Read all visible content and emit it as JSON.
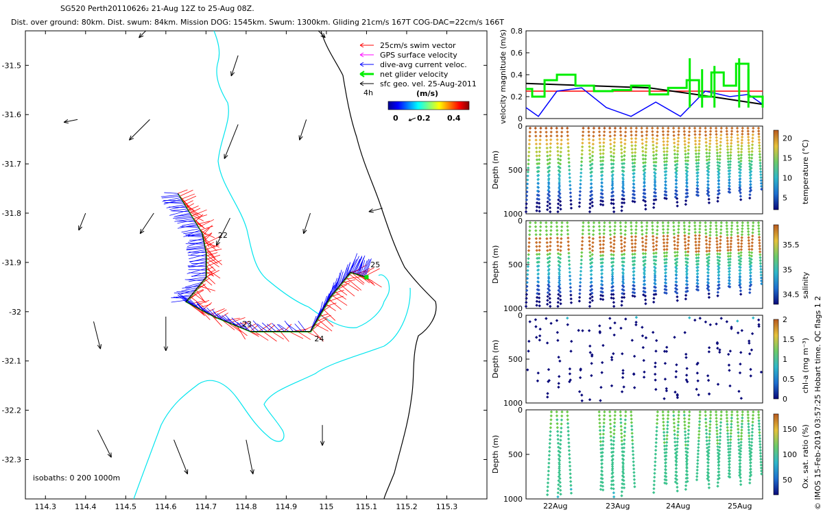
{
  "header": {
    "title": "SG520 Perth20110626₂ 21-Aug 12Z to 25-Aug 08Z.",
    "subtitle": "Dist. over ground: 80km. Dist. swum: 84km. Mission DOG: 1545km. Swum: 1300km. Gliding 21cm/s 167T COG-DAC=22cm/s 166T"
  },
  "footer": {
    "stamp": "© IMOS 15-Feb-2019 03:57:25 Hobart time. QC flags 1  2"
  },
  "colors": {
    "swim": "#ff0000",
    "gps": "#ff00ff",
    "dac": "#0000ff",
    "net": "#00ee00",
    "sfc": "#000000",
    "isobath_200": "#00e5ee",
    "isobath_1000": "#000000"
  },
  "chart_data": [
    {
      "type": "scatter",
      "name": "track_map",
      "xlim": [
        114.25,
        115.4
      ],
      "ylim": [
        -32.38,
        -31.43
      ],
      "xticks": [
        "114.3",
        "114.4",
        "114.5",
        "114.6",
        "114.7",
        "114.8",
        "114.9",
        "115",
        "115.1",
        "115.2",
        "115.3"
      ],
      "yticks": [
        "-31.5",
        "-31.6",
        "-31.7",
        "-31.8",
        "-31.9",
        "-32",
        "-32.1",
        "-32.2",
        "-32.3"
      ],
      "legend": [
        "25cm/s swim vector",
        "GPS surface velocity",
        "dive-avg current veloc.",
        "net glider velocity",
        "sfc geo. vel. 25-Aug-2011"
      ],
      "legend_placement": "top-right",
      "legend_note": "4h",
      "colorbar": {
        "label": "(m/s)",
        "ticks": [
          "0",
          "0.2",
          "0.4"
        ],
        "range": [
          0,
          0.5
        ]
      },
      "isobaths_label": "isobaths: 0   200   1000m",
      "track": [
        {
          "lon": 114.63,
          "lat": -31.76
        },
        {
          "lon": 114.66,
          "lat": -31.8
        },
        {
          "lon": 114.69,
          "lat": -31.84
        },
        {
          "lon": 114.7,
          "lat": -31.88
        },
        {
          "lon": 114.7,
          "lat": -31.93
        },
        {
          "lon": 114.65,
          "lat": -31.98
        },
        {
          "lon": 114.72,
          "lat": -32.01
        },
        {
          "lon": 114.81,
          "lat": -32.04
        },
        {
          "lon": 114.96,
          "lat": -32.04
        },
        {
          "lon": 115.01,
          "lat": -31.97
        },
        {
          "lon": 115.06,
          "lat": -31.92
        },
        {
          "lon": 115.1,
          "lat": -31.93
        }
      ],
      "track_labels": [
        {
          "text": "22",
          "lon": 114.73,
          "lat": -31.85
        },
        {
          "text": "23",
          "lon": 114.79,
          "lat": -32.03
        },
        {
          "text": "24",
          "lon": 114.97,
          "lat": -32.06
        },
        {
          "text": "25",
          "lon": 115.11,
          "lat": -31.91
        }
      ],
      "sfc_vectors": [
        {
          "lon": 114.38,
          "lat": -31.61,
          "u": -0.02,
          "v": -0.004
        },
        {
          "lon": 114.56,
          "lat": -31.61,
          "u": -0.03,
          "v": -0.03
        },
        {
          "lon": 114.78,
          "lat": -31.62,
          "u": -0.02,
          "v": -0.05
        },
        {
          "lon": 114.95,
          "lat": -31.61,
          "u": -0.01,
          "v": -0.03
        },
        {
          "lon": 114.4,
          "lat": -31.8,
          "u": -0.01,
          "v": -0.025
        },
        {
          "lon": 114.57,
          "lat": -31.8,
          "u": -0.02,
          "v": -0.03
        },
        {
          "lon": 114.76,
          "lat": -31.81,
          "u": -0.02,
          "v": -0.04
        },
        {
          "lon": 114.96,
          "lat": -31.8,
          "u": -0.01,
          "v": -0.03
        },
        {
          "lon": 115.14,
          "lat": -31.79,
          "u": -0.02,
          "v": -0.005
        },
        {
          "lon": 114.42,
          "lat": -32.02,
          "u": 0.01,
          "v": -0.04
        },
        {
          "lon": 114.6,
          "lat": -32.01,
          "u": 0.0,
          "v": -0.05
        },
        {
          "lon": 114.43,
          "lat": -32.24,
          "u": 0.02,
          "v": -0.04
        },
        {
          "lon": 114.62,
          "lat": -32.26,
          "u": 0.02,
          "v": -0.05
        },
        {
          "lon": 114.8,
          "lat": -32.26,
          "u": 0.01,
          "v": -0.05
        },
        {
          "lon": 114.99,
          "lat": -32.23,
          "u": 0.0,
          "v": -0.03
        },
        {
          "lon": 114.78,
          "lat": -31.48,
          "u": -0.01,
          "v": -0.03
        },
        {
          "lon": 114.55,
          "lat": -31.43,
          "u": -0.01,
          "v": -0.01
        },
        {
          "lon": 114.98,
          "lat": -31.43,
          "u": 0.01,
          "v": -0.01
        }
      ]
    },
    {
      "type": "line",
      "name": "velocity",
      "ylabel": "velocity magnitude (m/s)",
      "ylim": [
        0,
        0.8
      ],
      "yticks": [
        "0",
        "0.2",
        "0.4",
        "0.6",
        "0.8"
      ],
      "x_range_days": [
        21.5,
        25.33
      ],
      "series": [
        {
          "name": "swim",
          "color": "#ff0000",
          "x": [
            21.5,
            25.33
          ],
          "values": [
            0.25,
            0.25
          ]
        },
        {
          "name": "gps",
          "color": "#000000",
          "x": [
            21.5,
            22.5,
            23.5,
            24.5,
            25.33
          ],
          "values": [
            0.32,
            0.3,
            0.28,
            0.2,
            0.13
          ]
        },
        {
          "name": "dac",
          "color": "#0000ff",
          "x": [
            21.5,
            21.7,
            22.0,
            22.4,
            22.8,
            23.2,
            23.6,
            24.0,
            24.4,
            24.8,
            25.1,
            25.33
          ],
          "values": [
            0.1,
            0.02,
            0.25,
            0.28,
            0.1,
            0.02,
            0.15,
            0.02,
            0.25,
            0.2,
            0.22,
            0.13
          ]
        },
        {
          "name": "net",
          "color": "#00ee00",
          "x": [
            21.5,
            21.6,
            21.8,
            22.0,
            22.3,
            22.6,
            22.9,
            23.2,
            23.5,
            23.8,
            24.1,
            24.3,
            24.5,
            24.7,
            24.9,
            25.1,
            25.33
          ],
          "values": [
            0.27,
            0.2,
            0.35,
            0.4,
            0.3,
            0.25,
            0.26,
            0.3,
            0.22,
            0.28,
            0.35,
            0.2,
            0.42,
            0.3,
            0.5,
            0.2,
            0.1
          ]
        }
      ]
    },
    {
      "type": "scatter",
      "name": "temperature",
      "ylabel": "Depth (m)",
      "yticks": [
        "0",
        "500",
        "1000"
      ],
      "colorbar": {
        "label": "temperature (°C)",
        "ticks": [
          "5",
          "10",
          "15",
          "20"
        ],
        "range": [
          2,
          22
        ]
      }
    },
    {
      "type": "scatter",
      "name": "salinity",
      "ylabel": "Depth (m)",
      "yticks": [
        "0",
        "500",
        "1000"
      ],
      "colorbar": {
        "label": "salinity",
        "ticks": [
          "34.5",
          "35",
          "35.5"
        ],
        "range": [
          34.3,
          35.9
        ]
      }
    },
    {
      "type": "scatter",
      "name": "chl",
      "ylabel": "Depth (m)",
      "yticks": [
        "0",
        "500",
        "1000"
      ],
      "colorbar": {
        "label": "chl-a (mg m⁻³)",
        "ticks": [
          "0",
          "0.5",
          "1",
          "1.5",
          "2"
        ],
        "range": [
          0,
          2
        ]
      }
    },
    {
      "type": "scatter",
      "name": "oxygen",
      "ylabel": "Depth (m)",
      "yticks": [
        "0",
        "500",
        "1000"
      ],
      "xticks": [
        "22Aug",
        "23Aug",
        "24Aug",
        "25Aug"
      ],
      "colorbar": {
        "label": "Ox. sat. ratio (%)",
        "ticks": [
          "50",
          "100",
          "150"
        ],
        "range": [
          20,
          180
        ]
      }
    }
  ]
}
